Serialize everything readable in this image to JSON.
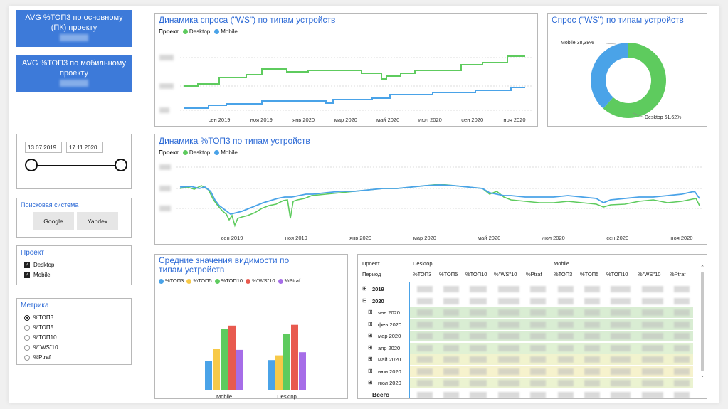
{
  "kpis": [
    {
      "title": "AVG %ТОП3 по основному (ПК) проекту"
    },
    {
      "title": "AVG %ТОП3 по мобильному проекту"
    }
  ],
  "demand_line": {
    "title": "Динамика спроса (\"WS\") по типам устройств",
    "legend_label": "Проект",
    "series": [
      {
        "name": "Desktop",
        "color": "#5ecb5e"
      },
      {
        "name": "Mobile",
        "color": "#4aa3e8"
      }
    ],
    "x_ticks": [
      "сен 2019",
      "ноя 2019",
      "янв 2020",
      "мар 2020",
      "май 2020",
      "июл 2020",
      "сен 2020",
      "ноя 2020"
    ]
  },
  "demand_pie": {
    "title": "Спрос (\"WS\") по типам устройств",
    "slices": [
      {
        "label": "Mobile 38,38%",
        "value": 38.38,
        "color": "#4aa3e8"
      },
      {
        "label": "Desktop 61,62%",
        "value": 61.62,
        "color": "#5ecb5e"
      }
    ]
  },
  "top3_line": {
    "title": "Динамика %ТОП3 по типам устройств",
    "legend_label": "Проект",
    "series": [
      {
        "name": "Desktop",
        "color": "#5ecb5e"
      },
      {
        "name": "Mobile",
        "color": "#4aa3e8"
      }
    ],
    "x_ticks": [
      "сен 2019",
      "ноя 2019",
      "янв 2020",
      "мар 2020",
      "май 2020",
      "июл 2020",
      "сен 2020",
      "ноя 2020"
    ]
  },
  "date_slicer": {
    "start": "13.07.2019",
    "end": "17.11.2020"
  },
  "search_engine": {
    "title": "Поисковая система",
    "options": [
      "Google",
      "Yandex"
    ]
  },
  "project_filter": {
    "title": "Проект",
    "items": [
      {
        "label": "Desktop",
        "checked": true
      },
      {
        "label": "Mobile",
        "checked": true
      }
    ]
  },
  "metric_filter": {
    "title": "Метрика",
    "items": [
      {
        "label": "%ТОП3",
        "selected": true
      },
      {
        "label": "%ТОП5",
        "selected": false
      },
      {
        "label": "%ТОП10",
        "selected": false
      },
      {
        "label": "%\"WS\"10",
        "selected": false
      },
      {
        "label": "%Ptraf",
        "selected": false
      }
    ]
  },
  "visibility_bar": {
    "title": "Средние значения видимости по типам устройств",
    "categories": [
      "Mobile",
      "Desktop"
    ],
    "series": [
      {
        "name": "%ТОП3",
        "color": "#4aa3e8",
        "values": [
          37,
          38
        ]
      },
      {
        "name": "%ТОП5",
        "color": "#f7c948",
        "values": [
          52,
          44
        ]
      },
      {
        "name": "%ТОП10",
        "color": "#5ecb5e",
        "values": [
          78,
          71
        ]
      },
      {
        "name": "%\"WS\"10",
        "color": "#e85a4f",
        "values": [
          82,
          83
        ]
      },
      {
        "name": "%Ptraf",
        "color": "#a66de8",
        "values": [
          51,
          48
        ]
      }
    ]
  },
  "matrix": {
    "row_header_1": "Проект",
    "row_header_2": "Период",
    "groups": [
      "Desktop",
      "Mobile"
    ],
    "columns": [
      "%ТОП3",
      "%ТОП5",
      "%ТОП10",
      "%\"WS\"10",
      "%Ptraf",
      "%ТОП3",
      "%ТОП5",
      "%ТОП10",
      "%\"WS\"10",
      "%Ptraf"
    ],
    "rows": [
      {
        "label": "2019",
        "level": 0,
        "toggle": "⊞"
      },
      {
        "label": "2020",
        "level": 0,
        "toggle": "⊟"
      },
      {
        "label": "янв 2020",
        "level": 1,
        "toggle": "⊞"
      },
      {
        "label": "фев 2020",
        "level": 1,
        "toggle": "⊞"
      },
      {
        "label": "мар 2020",
        "level": 1,
        "toggle": "⊞"
      },
      {
        "label": "апр 2020",
        "level": 1,
        "toggle": "⊞"
      },
      {
        "label": "май 2020",
        "level": 1,
        "toggle": "⊞"
      },
      {
        "label": "июн 2020",
        "level": 1,
        "toggle": "⊞"
      },
      {
        "label": "июл 2020",
        "level": 1,
        "toggle": "⊞"
      }
    ],
    "total_label": "Всего"
  }
}
